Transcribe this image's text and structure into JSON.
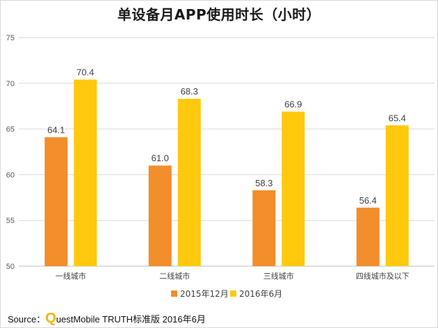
{
  "chart_data": {
    "type": "bar",
    "title": "单设备月APP使用时长（小时）",
    "categories": [
      "一线城市",
      "二线城市",
      "三线城市",
      "四线城市及以下"
    ],
    "series": [
      {
        "name": "2015年12月",
        "color": "#f28e2b",
        "values": [
          64.1,
          61.0,
          58.3,
          56.4
        ],
        "labels": [
          "64.1",
          "61.0",
          "58.3",
          "56.4"
        ]
      },
      {
        "name": "2016年6月",
        "color": "#ffc90e",
        "values": [
          70.4,
          68.3,
          66.9,
          65.4
        ],
        "labels": [
          "70.4",
          "68.3",
          "66.9",
          "65.4"
        ]
      }
    ],
    "ylim": [
      50,
      75
    ],
    "yticks": [
      "50",
      "55",
      "60",
      "65",
      "70",
      "75"
    ],
    "grid": true,
    "legend_position": "bottom"
  },
  "source": {
    "prefix": "Source：",
    "logo_letter": "Q",
    "text": "uestMobile TRUTH标准版 2016年6月"
  }
}
